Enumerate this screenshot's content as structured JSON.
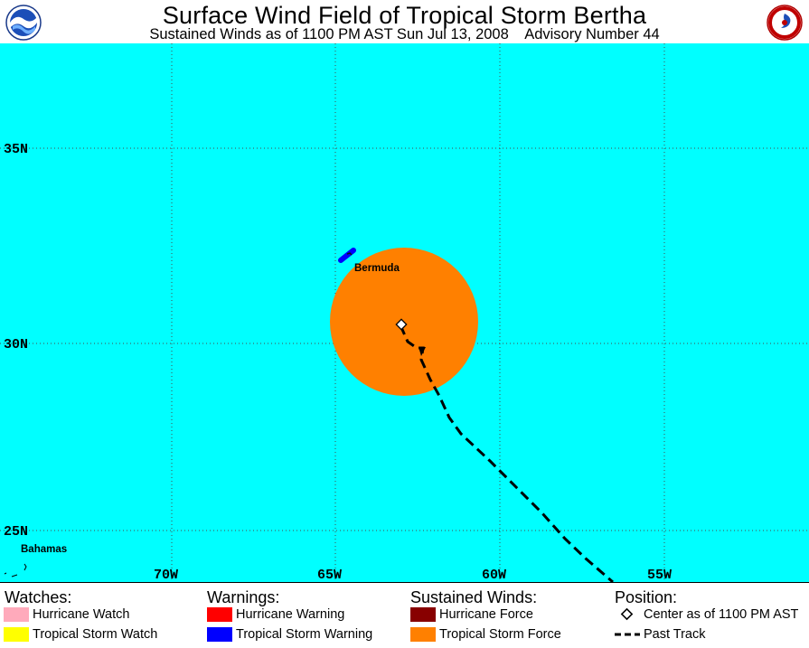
{
  "header": {
    "title": "Surface Wind Field of Tropical Storm Bertha",
    "subtitle": "Sustained Winds as of 1100 PM AST Sun Jul 13, 2008    Advisory Number 44"
  },
  "map": {
    "colors": {
      "ocean": "#00ffff",
      "grid": "#4a4a4a",
      "tropical_storm_force": "#ff8000",
      "tropical_storm_warning": "#0000ff",
      "track": "#000000"
    },
    "lon_labels": [
      "70W",
      "65W",
      "60W",
      "55W"
    ],
    "lat_labels": [
      "35N",
      "30N",
      "25N"
    ],
    "places": {
      "bermuda": "Bermuda",
      "bahamas": "Bahamas"
    }
  },
  "legend": {
    "watches": {
      "heading": "Watches:",
      "items": [
        {
          "label": "Hurricane Watch",
          "color": "#ffaabb"
        },
        {
          "label": "Tropical Storm Watch",
          "color": "#ffff00"
        }
      ]
    },
    "warnings": {
      "heading": "Warnings:",
      "items": [
        {
          "label": "Hurricane Warning",
          "color": "#ff0000"
        },
        {
          "label": "Tropical Storm Warning",
          "color": "#0000ff"
        }
      ]
    },
    "winds": {
      "heading": "Sustained Winds:",
      "items": [
        {
          "label": "Hurricane Force",
          "color": "#880000"
        },
        {
          "label": "Tropical Storm Force",
          "color": "#ff8000"
        }
      ]
    },
    "position": {
      "heading": "Position:",
      "center_label": "Center as of 1100 PM AST",
      "track_label": "Past Track"
    }
  }
}
